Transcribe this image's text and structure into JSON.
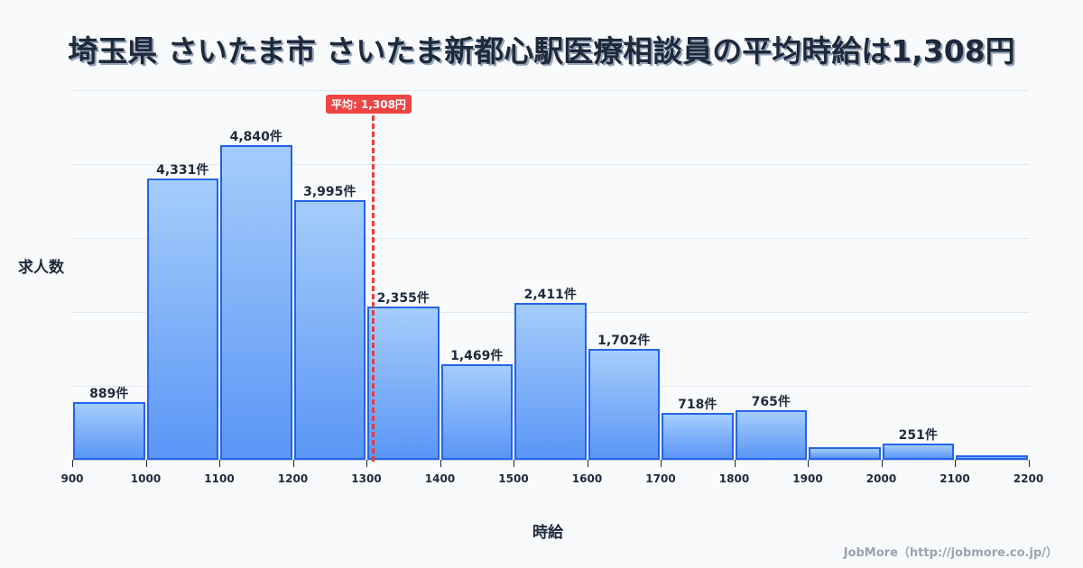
{
  "title": "埼玉県 さいたま市 さいたま新都心駅医療相談員の平均時給は1,308円",
  "y_label": "求人数",
  "x_label": "時給",
  "credit": "JobMore（http://jobmore.co.jp/）",
  "average_badge": "平均: 1,308円",
  "colors": {
    "bar_border": "#2563eb",
    "bar_top": "#a5cdfb",
    "bar_bottom": "#5b96f6",
    "average": "#ef4444",
    "text": "#1e293b"
  },
  "chart_data": {
    "type": "bar",
    "title": "埼玉県 さいたま市 さいたま新都心駅医療相談員の平均時給は1,308円",
    "xlabel": "時給",
    "ylabel": "求人数",
    "bin_edges": [
      900,
      1000,
      1100,
      1200,
      1300,
      1400,
      1500,
      1600,
      1700,
      1800,
      1900,
      2000,
      2100,
      2200
    ],
    "categories": [
      "900-1000",
      "1000-1100",
      "1100-1200",
      "1200-1300",
      "1300-1400",
      "1400-1500",
      "1500-1600",
      "1600-1700",
      "1700-1800",
      "1800-1900",
      "1900-2000",
      "2000-2100",
      "2100-2200"
    ],
    "values": [
      889,
      4331,
      4840,
      3995,
      2355,
      1469,
      2411,
      1702,
      718,
      765,
      190,
      251,
      70
    ],
    "labels": [
      "889件",
      "4,331件",
      "4,840件",
      "3,995件",
      "2,355件",
      "1,469件",
      "2,411件",
      "1,702件",
      "718件",
      "765件",
      "",
      "251件",
      ""
    ],
    "average": 1308,
    "average_label": "平均: 1,308円",
    "xlim": [
      900,
      2200
    ],
    "grid": true,
    "xticks": [
      "900",
      "1000",
      "1100",
      "1200",
      "1300",
      "1400",
      "1500",
      "1600",
      "1700",
      "1800",
      "1900",
      "2000",
      "2100",
      "2200"
    ]
  }
}
